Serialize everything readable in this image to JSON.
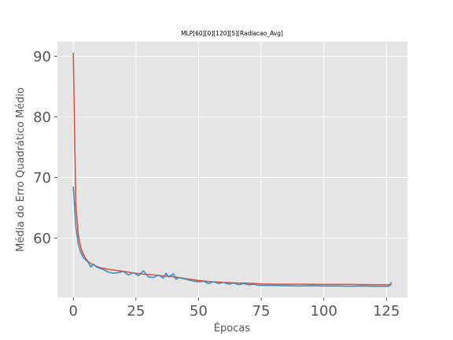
{
  "chart_data": {
    "type": "line",
    "title": "MLP[60][0][120][5][Radiacao_Avg]",
    "xlabel": "Épocas",
    "ylabel": "Média do Erro Quadrático Médio",
    "xlim": [
      -6.35,
      133.35
    ],
    "ylim": [
      50.2,
      92.4
    ],
    "xticks": [
      0,
      25,
      50,
      75,
      100,
      125
    ],
    "yticks": [
      60,
      70,
      80,
      90
    ],
    "xtick_labels": [
      "0",
      "25",
      "50",
      "75",
      "100",
      "125"
    ],
    "ytick_labels": [
      "60",
      "70",
      "80",
      "90"
    ],
    "grid": true,
    "legend": "none",
    "series": [
      {
        "color": "#E24A33",
        "x": [
          0,
          1,
          2,
          3,
          4,
          5,
          6,
          7,
          8,
          10,
          12,
          15,
          20,
          25,
          30,
          35,
          40,
          45,
          50,
          55,
          60,
          65,
          70,
          75,
          80,
          90,
          100,
          110,
          120,
          127
        ],
        "y": [
          90.6,
          65.5,
          60.5,
          58.4,
          57.3,
          56.6,
          56.1,
          55.8,
          55.6,
          55.2,
          55.0,
          54.8,
          54.5,
          54.2,
          54.0,
          53.8,
          53.6,
          53.3,
          53.0,
          52.8,
          52.7,
          52.6,
          52.55,
          52.45,
          52.4,
          52.4,
          52.35,
          52.35,
          52.3,
          52.3
        ]
      },
      {
        "color": "#348ABD",
        "x": [
          0,
          1,
          2,
          3,
          4,
          5,
          6,
          7,
          8,
          9,
          10,
          12,
          14,
          16,
          18,
          20,
          22,
          24,
          26,
          28,
          30,
          32,
          34,
          36,
          37,
          38,
          40,
          41,
          42,
          44,
          46,
          48,
          50,
          52,
          54,
          56,
          58,
          60,
          62,
          64,
          66,
          68,
          70,
          72,
          74,
          76,
          80,
          85,
          90,
          95,
          100,
          105,
          110,
          115,
          120,
          126,
          127
        ],
        "y": [
          68.5,
          62.0,
          59.0,
          57.6,
          56.8,
          56.4,
          56.0,
          55.2,
          55.7,
          55.3,
          55.1,
          54.8,
          54.4,
          54.2,
          54.3,
          54.5,
          53.9,
          54.3,
          53.8,
          54.6,
          53.6,
          53.5,
          53.9,
          53.4,
          54.2,
          53.6,
          54.1,
          53.2,
          53.5,
          53.3,
          53.1,
          52.9,
          52.8,
          52.9,
          52.5,
          52.8,
          52.5,
          52.7,
          52.4,
          52.6,
          52.3,
          52.5,
          52.3,
          52.4,
          52.2,
          52.2,
          52.2,
          52.15,
          52.1,
          52.15,
          52.1,
          52.1,
          52.05,
          52.1,
          52.05,
          52.05,
          52.7
        ]
      }
    ]
  }
}
